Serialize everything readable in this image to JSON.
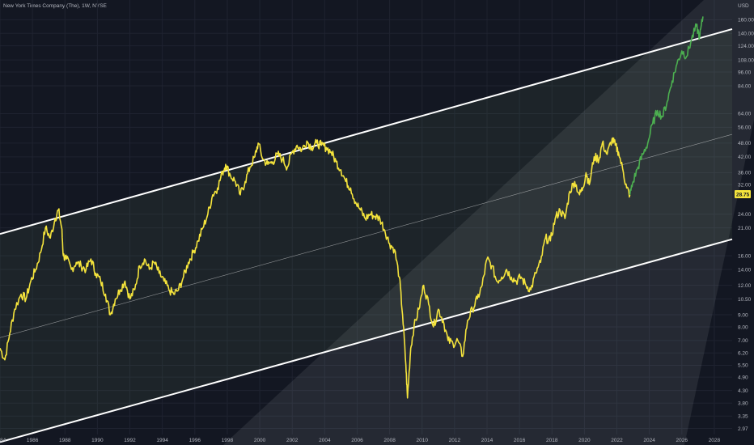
{
  "header": {
    "title": "New York Times Company (The), 1W, NYSE"
  },
  "axis": {
    "currency": "USD"
  },
  "current_price": "28.75",
  "colors": {
    "background": "#131722",
    "price_line": "#f5e43c",
    "recent_line": "#4caf50",
    "channel_line": "#ffffff",
    "text": "#b2b5be",
    "price_tag": "#f5e43c"
  },
  "chart_data": {
    "type": "line",
    "title": "New York Times Company (The), 1W, NYSE",
    "xlabel": "",
    "ylabel": "USD",
    "y_scale": "log",
    "xlim": [
      1984,
      2029.1
    ],
    "ylim": [
      2.8,
      182
    ],
    "x_ticks": [
      "1984",
      "1986",
      "1988",
      "1990",
      "1992",
      "1994",
      "1996",
      "1998",
      "2000",
      "2002",
      "2004",
      "2006",
      "2008",
      "2010",
      "2012",
      "2014",
      "2016",
      "2018",
      "2020",
      "2022",
      "2024",
      "2026",
      "2028"
    ],
    "y_ticks": [
      "160.00",
      "140.00",
      "124.00",
      "108.00",
      "96.00",
      "84.00",
      "64.00",
      "56.00",
      "48.00",
      "42.00",
      "36.00",
      "32.00",
      "24.00",
      "21.00",
      "16.00",
      "14.00",
      "12.00",
      "10.50",
      "9.00",
      "8.00",
      "7.00",
      "6.20",
      "5.50",
      "4.90",
      "4.30",
      "3.80",
      "3.35",
      "2.97"
    ],
    "grid": true,
    "series": [
      {
        "style": "yellow",
        "points": [
          [
            1984.0,
            6.5
          ],
          [
            1984.3,
            5.8
          ],
          [
            1984.6,
            7.5
          ],
          [
            1984.9,
            9.5
          ],
          [
            1985.3,
            11.0
          ],
          [
            1985.6,
            10.5
          ],
          [
            1985.9,
            12.5
          ],
          [
            1986.2,
            14.0
          ],
          [
            1986.5,
            16.5
          ],
          [
            1986.8,
            21.0
          ],
          [
            1987.1,
            19.0
          ],
          [
            1987.4,
            23.0
          ],
          [
            1987.6,
            25.0
          ],
          [
            1987.8,
            21.0
          ],
          [
            1987.9,
            16.0
          ],
          [
            1988.1,
            15.5
          ],
          [
            1988.4,
            14.0
          ],
          [
            1988.7,
            15.0
          ],
          [
            1989.0,
            14.5
          ],
          [
            1989.3,
            14.0
          ],
          [
            1989.6,
            15.5
          ],
          [
            1989.9,
            13.5
          ],
          [
            1990.2,
            12.5
          ],
          [
            1990.5,
            11.0
          ],
          [
            1990.8,
            9.0
          ],
          [
            1991.1,
            10.5
          ],
          [
            1991.4,
            11.5
          ],
          [
            1991.7,
            12.5
          ],
          [
            1992.0,
            10.5
          ],
          [
            1992.3,
            11.5
          ],
          [
            1992.6,
            14.5
          ],
          [
            1992.9,
            15.5
          ],
          [
            1993.2,
            14.0
          ],
          [
            1993.5,
            15.0
          ],
          [
            1993.8,
            13.5
          ],
          [
            1994.1,
            12.5
          ],
          [
            1994.4,
            11.5
          ],
          [
            1994.7,
            11.0
          ],
          [
            1995.0,
            11.5
          ],
          [
            1995.3,
            13.0
          ],
          [
            1995.6,
            15.0
          ],
          [
            1995.9,
            16.5
          ],
          [
            1996.2,
            18.5
          ],
          [
            1996.5,
            21.0
          ],
          [
            1996.8,
            24.0
          ],
          [
            1997.1,
            29.0
          ],
          [
            1997.4,
            31.0
          ],
          [
            1997.7,
            36.0
          ],
          [
            1997.9,
            39.0
          ],
          [
            1998.2,
            35.0
          ],
          [
            1998.5,
            33.0
          ],
          [
            1998.8,
            29.0
          ],
          [
            1999.1,
            33.0
          ],
          [
            1999.4,
            38.0
          ],
          [
            1999.7,
            42.0
          ],
          [
            1999.9,
            48.0
          ],
          [
            2000.2,
            41.0
          ],
          [
            2000.5,
            39.0
          ],
          [
            2000.8,
            40.0
          ],
          [
            2001.1,
            43.0
          ],
          [
            2001.4,
            41.0
          ],
          [
            2001.7,
            38.0
          ],
          [
            2002.0,
            44.0
          ],
          [
            2002.3,
            47.0
          ],
          [
            2002.6,
            45.0
          ],
          [
            2002.9,
            49.0
          ],
          [
            2003.2,
            46.0
          ],
          [
            2003.5,
            48.0
          ],
          [
            2003.8,
            47.0
          ],
          [
            2004.1,
            46.0
          ],
          [
            2004.4,
            44.0
          ],
          [
            2004.7,
            40.0
          ],
          [
            2005.0,
            37.0
          ],
          [
            2005.3,
            33.0
          ],
          [
            2005.6,
            31.0
          ],
          [
            2005.9,
            27.0
          ],
          [
            2006.2,
            25.0
          ],
          [
            2006.5,
            23.0
          ],
          [
            2006.8,
            24.0
          ],
          [
            2007.1,
            23.5
          ],
          [
            2007.4,
            23.0
          ],
          [
            2007.7,
            20.5
          ],
          [
            2008.0,
            18.0
          ],
          [
            2008.3,
            17.0
          ],
          [
            2008.6,
            13.0
          ],
          [
            2008.8,
            9.0
          ],
          [
            2009.0,
            5.5
          ],
          [
            2009.1,
            4.0
          ],
          [
            2009.3,
            6.5
          ],
          [
            2009.5,
            8.0
          ],
          [
            2009.8,
            9.5
          ],
          [
            2010.1,
            12.0
          ],
          [
            2010.4,
            10.0
          ],
          [
            2010.7,
            8.0
          ],
          [
            2011.0,
            9.5
          ],
          [
            2011.3,
            8.5
          ],
          [
            2011.6,
            7.0
          ],
          [
            2011.9,
            6.8
          ],
          [
            2012.2,
            7.0
          ],
          [
            2012.5,
            6.0
          ],
          [
            2012.8,
            8.5
          ],
          [
            2013.1,
            9.5
          ],
          [
            2013.4,
            10.5
          ],
          [
            2013.7,
            12.0
          ],
          [
            2014.0,
            15.5
          ],
          [
            2014.3,
            14.5
          ],
          [
            2014.6,
            12.5
          ],
          [
            2014.9,
            13.0
          ],
          [
            2015.2,
            14.0
          ],
          [
            2015.5,
            13.0
          ],
          [
            2015.8,
            12.5
          ],
          [
            2016.1,
            13.0
          ],
          [
            2016.4,
            12.0
          ],
          [
            2016.7,
            11.5
          ],
          [
            2017.0,
            13.5
          ],
          [
            2017.3,
            15.0
          ],
          [
            2017.6,
            19.0
          ],
          [
            2017.9,
            18.5
          ],
          [
            2018.2,
            23.0
          ],
          [
            2018.5,
            25.0
          ],
          [
            2018.8,
            23.0
          ],
          [
            2019.1,
            30.0
          ],
          [
            2019.4,
            33.0
          ],
          [
            2019.7,
            29.0
          ],
          [
            2019.9,
            31.0
          ],
          [
            2020.1,
            36.0
          ],
          [
            2020.3,
            32.0
          ],
          [
            2020.6,
            42.0
          ],
          [
            2020.9,
            41.0
          ],
          [
            2021.1,
            48.0
          ],
          [
            2021.4,
            43.0
          ],
          [
            2021.7,
            50.0
          ],
          [
            2021.9,
            47.0
          ],
          [
            2022.1,
            44.0
          ],
          [
            2022.4,
            36.0
          ],
          [
            2022.6,
            31.0
          ],
          [
            2022.8,
            29.0
          ]
        ]
      },
      {
        "style": "green",
        "points": [
          [
            2022.8,
            29.0
          ],
          [
            2023.0,
            33.0
          ],
          [
            2023.3,
            38.0
          ],
          [
            2023.6,
            43.0
          ],
          [
            2023.9,
            48.0
          ],
          [
            2024.2,
            58.0
          ],
          [
            2024.5,
            66.0
          ],
          [
            2024.8,
            62.0
          ],
          [
            2025.1,
            72.0
          ],
          [
            2025.4,
            88.0
          ],
          [
            2025.7,
            104.0
          ],
          [
            2026.0,
            118.0
          ],
          [
            2026.3,
            112.0
          ],
          [
            2026.6,
            132.0
          ],
          [
            2026.9,
            150.0
          ],
          [
            2027.1,
            135.0
          ],
          [
            2027.3,
            165.0
          ]
        ]
      }
    ],
    "channel": {
      "upper": [
        [
          1984.0,
          19.8
        ],
        [
          2029.1,
          146.0
        ]
      ],
      "mid": [
        [
          1984.0,
          7.2
        ],
        [
          2029.1,
          52.3
        ]
      ],
      "lower": [
        [
          1984.0,
          2.6
        ],
        [
          2029.1,
          18.8
        ]
      ]
    }
  }
}
